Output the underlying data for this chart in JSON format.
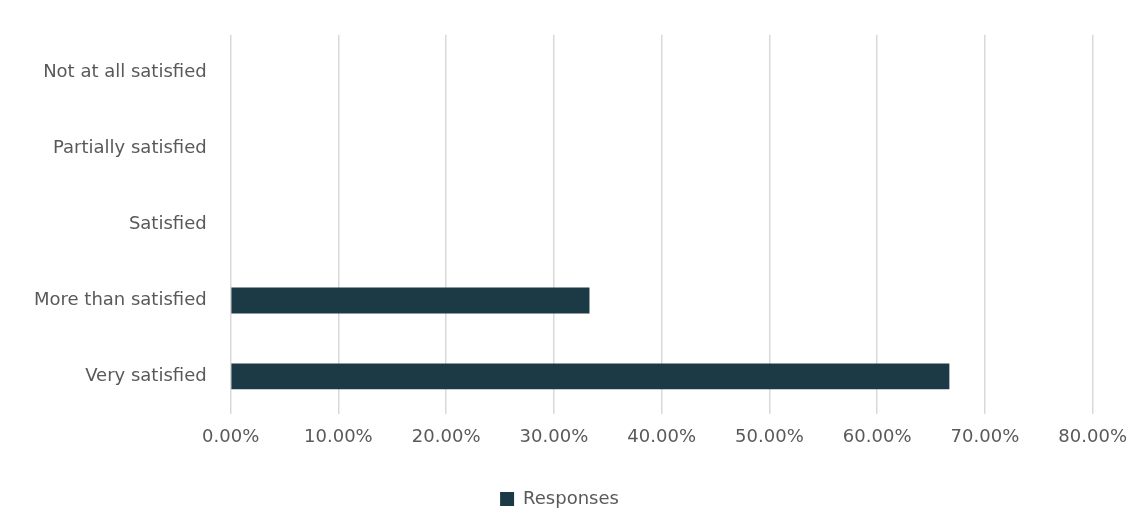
{
  "chart_data": {
    "type": "bar",
    "orientation": "horizontal",
    "categories": [
      "Not at all satisfied",
      "Partially satisfied",
      "Satisfied",
      "More than satisfied",
      "Very satisfied"
    ],
    "series": [
      {
        "name": "Responses",
        "color": "#1b3a45",
        "values": [
          0,
          0,
          0,
          33.3,
          66.7
        ]
      }
    ],
    "xlim": [
      0,
      80
    ],
    "xticks": [
      {
        "value": 0,
        "label": "0.00%"
      },
      {
        "value": 10,
        "label": "10.00%"
      },
      {
        "value": 20,
        "label": "20.00%"
      },
      {
        "value": 30,
        "label": "30.00%"
      },
      {
        "value": 40,
        "label": "40.00%"
      },
      {
        "value": 50,
        "label": "50.00%"
      },
      {
        "value": 60,
        "label": "60.00%"
      },
      {
        "value": 70,
        "label": "70.00%"
      },
      {
        "value": 80,
        "label": "80.00%"
      }
    ],
    "grid": "x",
    "legend": "bottom"
  }
}
